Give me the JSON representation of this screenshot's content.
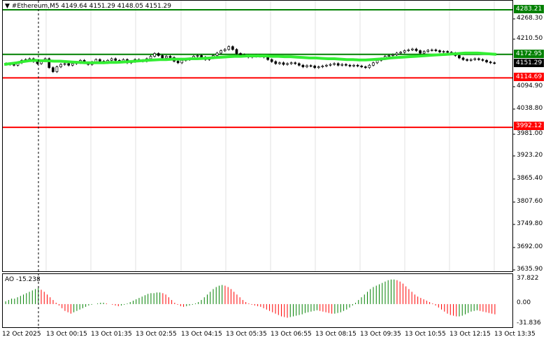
{
  "header": {
    "dropdown_icon": "triangle-down-icon",
    "symbol": "#Ethereum,M5",
    "ohlc": "4149.64 4151.29 4148.05 4151.29"
  },
  "price_axis": {
    "ticks": [
      "4268.30",
      "4210.50",
      "4094.90",
      "4038.80",
      "3981.00",
      "3923.20",
      "3865.40",
      "3807.60",
      "3749.80",
      "3692.00",
      "3635.90"
    ]
  },
  "time_axis": {
    "labels": [
      "12 Oct 2025",
      "13 Oct 00:15",
      "13 Oct 01:35",
      "13 Oct 02:55",
      "13 Oct 04:15",
      "13 Oct 05:35",
      "13 Oct 06:55",
      "13 Oct 08:15",
      "13 Oct 09:35",
      "13 Oct 10:55",
      "13 Oct 12:15",
      "13 Oct 13:35"
    ]
  },
  "levels": [
    {
      "name": "resistance-high",
      "label": "4283.21",
      "value": 4283.21,
      "color": "#008000"
    },
    {
      "name": "resistance",
      "label": "4172.95",
      "value": 4172.95,
      "color": "#008000"
    },
    {
      "name": "current-price",
      "label": "4151.29",
      "value": 4151.29,
      "color": "#000000"
    },
    {
      "name": "support",
      "label": "4114.69",
      "value": 4114.69,
      "color": "#ff0000"
    },
    {
      "name": "support-low",
      "label": "3992.12",
      "value": 3992.12,
      "color": "#ff0000"
    }
  ],
  "indicator": {
    "name": "AO",
    "value": "-15.238",
    "ticks": [
      "37.822",
      "0.00",
      "-31.836"
    ],
    "up_color": "#008000",
    "down_color": "#ff0000"
  },
  "colors": {
    "moving_average": "#33ee33",
    "candle": "#000000",
    "grid": "#c8c8c8"
  },
  "chart_data": [
    {
      "type": "candlestick",
      "title": "#Ethereum,M5",
      "y_unit": "USD",
      "ylim": [
        3635.9,
        4283.21
      ],
      "series_close": [
        4150,
        4148,
        4146,
        4152,
        4158,
        4160,
        4162,
        4155,
        4150,
        4157,
        4162,
        4140,
        4130,
        4142,
        4148,
        4150,
        4146,
        4150,
        4152,
        4158,
        4152,
        4148,
        4154,
        4160,
        4156,
        4152,
        4158,
        4162,
        4158,
        4156,
        4160,
        4152,
        4155,
        4160,
        4158,
        4156,
        4162,
        4168,
        4175,
        4170,
        4164,
        4168,
        4165,
        4156,
        4152,
        4158,
        4160,
        4162,
        4168,
        4170,
        4166,
        4160,
        4164,
        4170,
        4176,
        4182,
        4185,
        4192,
        4185,
        4175,
        4172,
        4170,
        4166,
        4168,
        4170,
        4168,
        4166,
        4160,
        4155,
        4150,
        4152,
        4148,
        4150,
        4152,
        4150,
        4146,
        4142,
        4145,
        4144,
        4140,
        4142,
        4144,
        4146,
        4148,
        4150,
        4146,
        4148,
        4146,
        4144,
        4146,
        4144,
        4142,
        4140,
        4146,
        4152,
        4158,
        4162,
        4168,
        4170,
        4172,
        4176,
        4178,
        4182,
        4184,
        4186,
        4182,
        4176,
        4180,
        4183,
        4184,
        4182,
        4179,
        4180,
        4178,
        4176,
        4170,
        4164,
        4160,
        4158,
        4160,
        4162,
        4160,
        4158,
        4154,
        4152,
        4151
      ],
      "moving_average": [
        4148,
        4150,
        4152,
        4155,
        4157,
        4158,
        4157,
        4157,
        4156,
        4156,
        4155,
        4154,
        4153,
        4152,
        4152,
        4152,
        4152,
        4153,
        4153,
        4154,
        4155,
        4156,
        4157,
        4158,
        4159,
        4160,
        4160,
        4161,
        4161,
        4161,
        4162,
        4162,
        4163,
        4164,
        4165,
        4166,
        4167,
        4168,
        4168,
        4169,
        4169,
        4169,
        4169,
        4168,
        4168,
        4167,
        4167,
        4166,
        4165,
        4164,
        4164,
        4163,
        4162,
        4162,
        4161,
        4160,
        4160,
        4159,
        4159,
        4160,
        4161,
        4162,
        4164,
        4165,
        4166,
        4167,
        4168,
        4169,
        4170,
        4171,
        4172,
        4173,
        4174,
        4175,
        4176,
        4176,
        4176,
        4175,
        4174,
        4173
      ],
      "levels": [
        4283.21,
        4172.95,
        4114.69,
        3992.12
      ],
      "x_range": [
        "12 Oct 2025",
        "13 Oct 13:35"
      ]
    },
    {
      "type": "bar",
      "title": "AO",
      "ylim": [
        -31.836,
        37.822
      ],
      "values": [
        4,
        6,
        8,
        8,
        10,
        12,
        14,
        16,
        18,
        20,
        22,
        24,
        21,
        18,
        14,
        10,
        6,
        2,
        -2,
        -6,
        -10,
        -12,
        -14,
        -12,
        -10,
        -8,
        -6,
        -4,
        -2,
        -1,
        0,
        1,
        2,
        2,
        1,
        0,
        -1,
        -2,
        -3,
        -2,
        -1,
        1,
        3,
        5,
        7,
        9,
        11,
        13,
        15,
        16,
        16,
        17,
        17,
        16,
        14,
        10,
        6,
        2,
        -1,
        -3,
        -4,
        -3,
        -2,
        -1,
        1,
        3,
        6,
        10,
        14,
        18,
        22,
        25,
        27,
        28,
        27,
        25,
        22,
        18,
        14,
        10,
        6,
        3,
        1,
        -1,
        -2,
        -3,
        -4,
        -6,
        -8,
        -10,
        -12,
        -14,
        -16,
        -18,
        -19,
        -20,
        -19,
        -18,
        -17,
        -16,
        -15,
        -13,
        -12,
        -11,
        -10,
        -9,
        -10,
        -11,
        -12,
        -13,
        -14,
        -14,
        -13,
        -12,
        -10,
        -8,
        -5,
        -2,
        2,
        6,
        10,
        14,
        18,
        22,
        25,
        27,
        29,
        31,
        33,
        35,
        36,
        36,
        35,
        33,
        30,
        26,
        22,
        18,
        14,
        11,
        9,
        7,
        5,
        3,
        1,
        -2,
        -5,
        -8,
        -11,
        -14,
        -16,
        -17,
        -18,
        -18,
        -17,
        -15,
        -13,
        -11,
        -10,
        -9,
        -10,
        -11,
        -12,
        -13,
        -14,
        -15
      ]
    }
  ]
}
